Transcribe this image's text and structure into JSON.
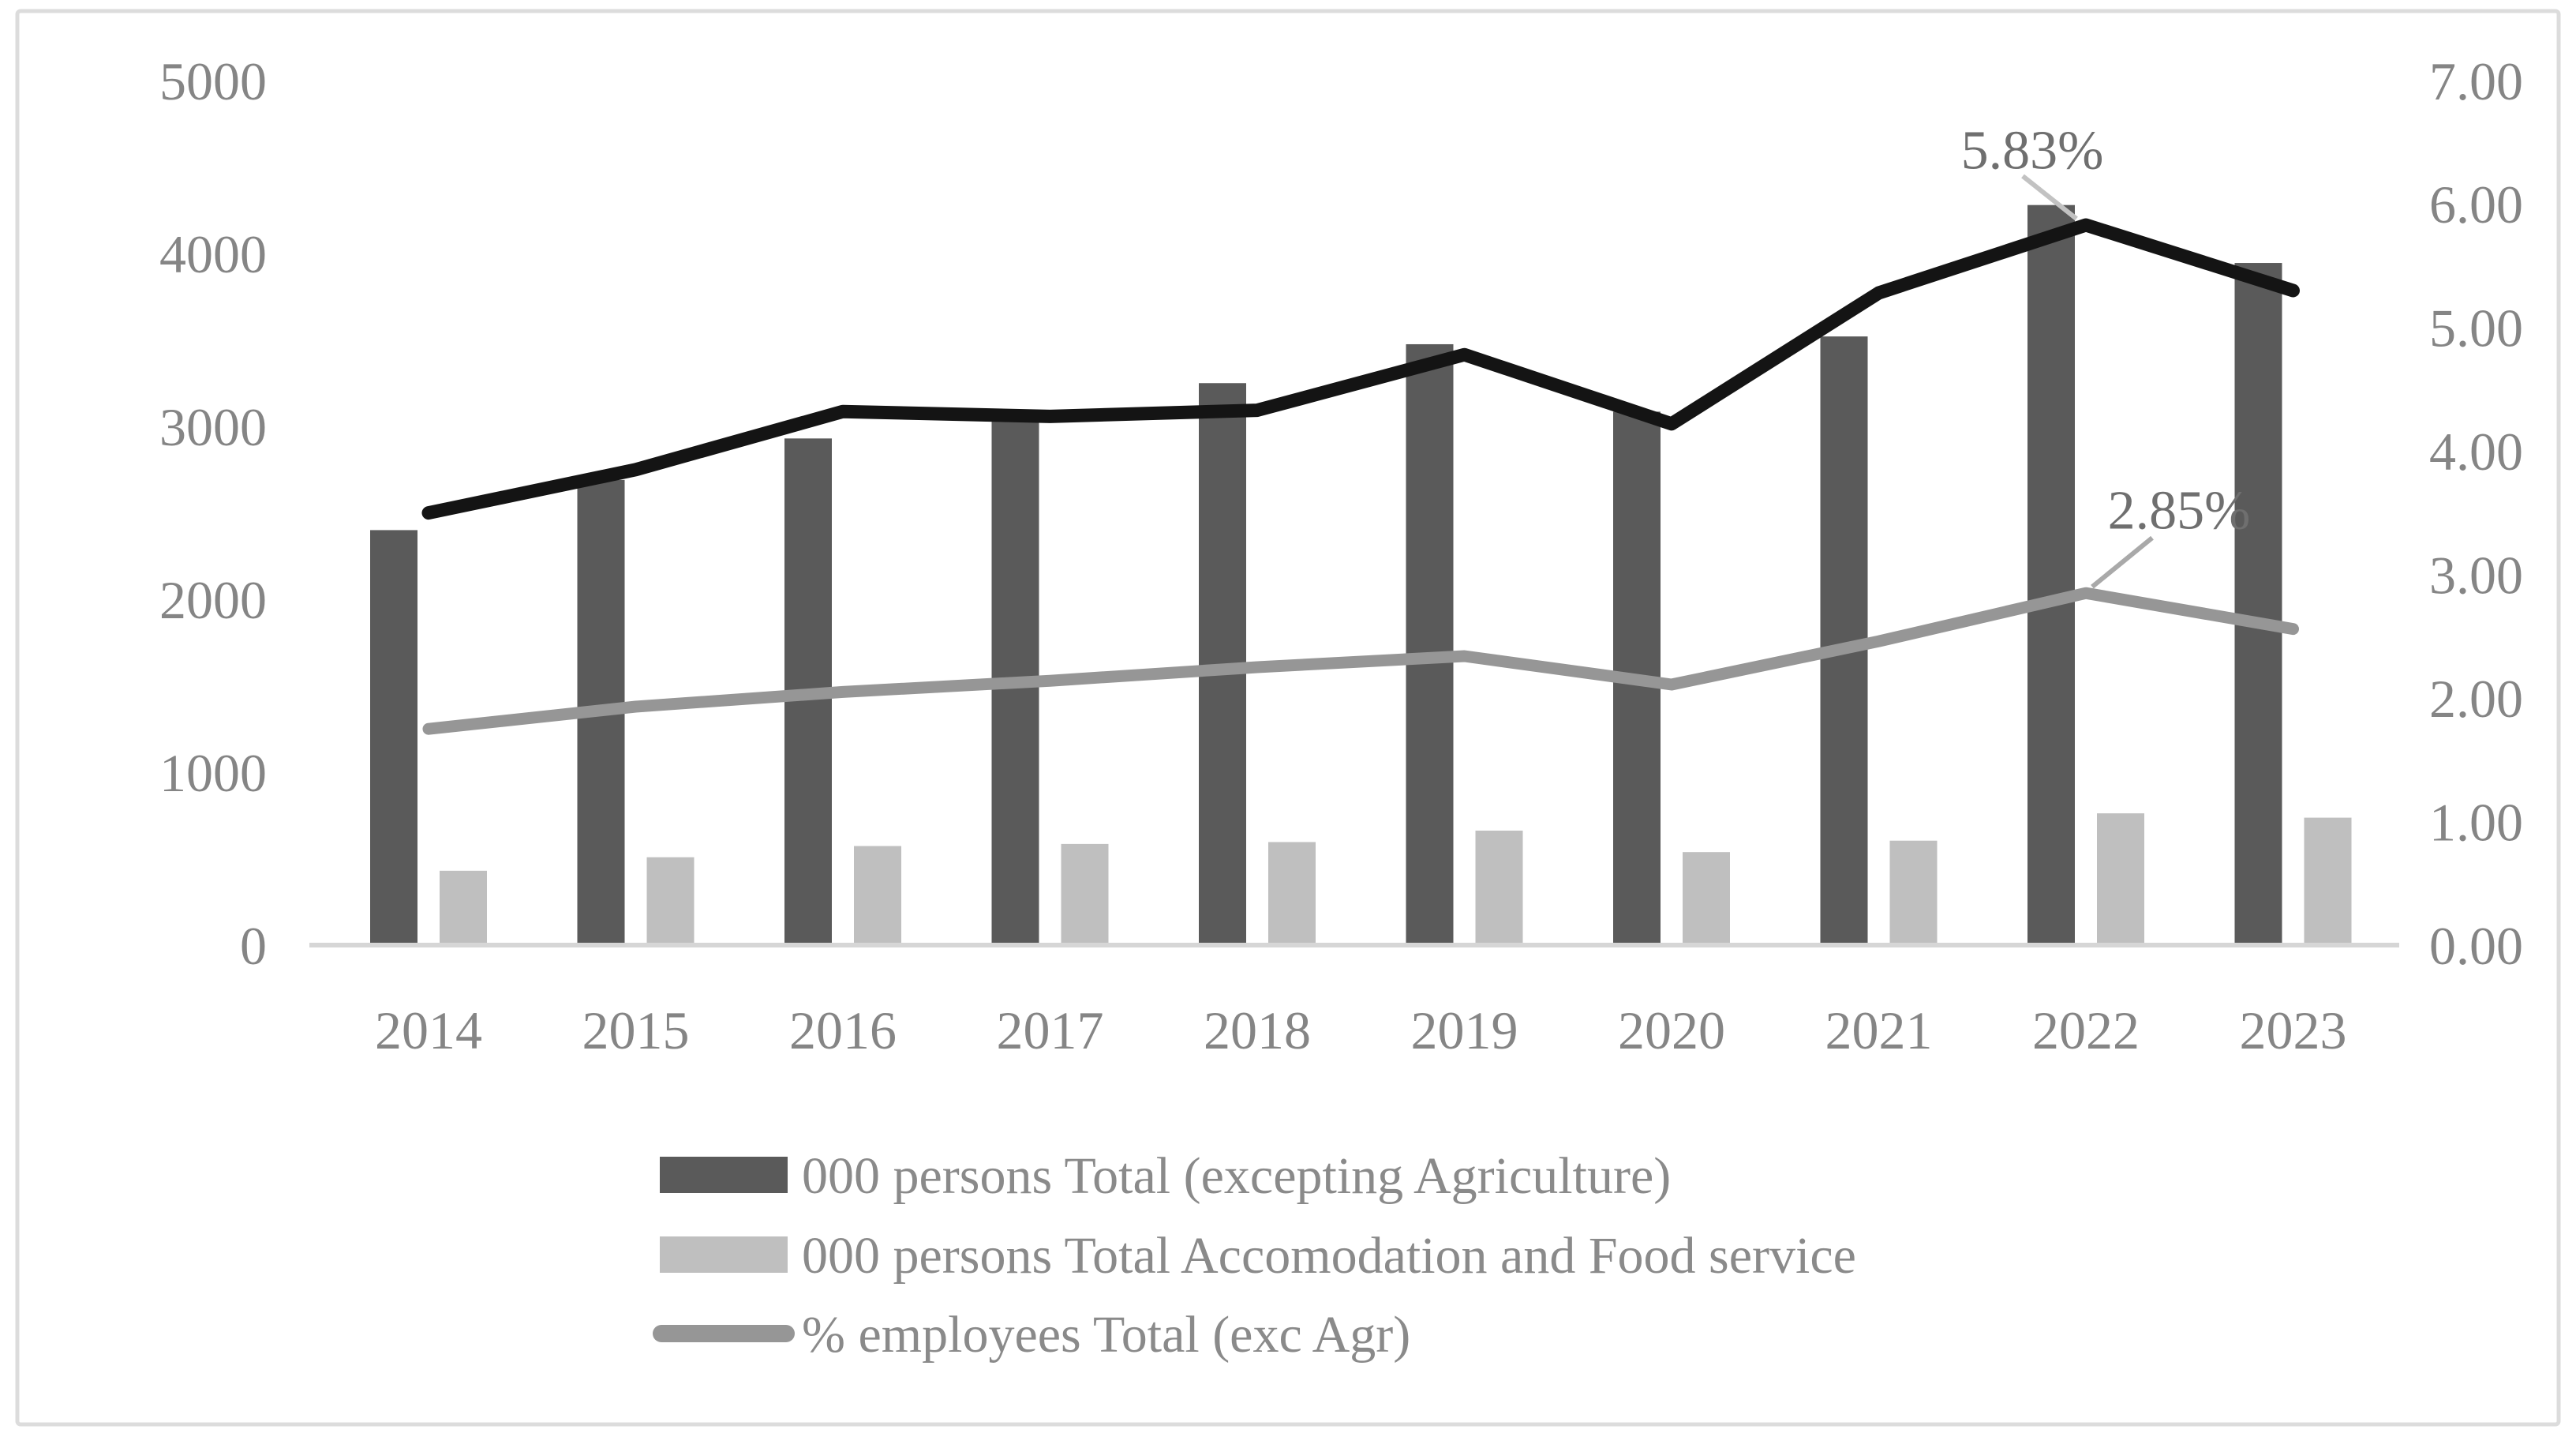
{
  "figure": {
    "background": "#ffffff",
    "border_color": "#dcdcdc",
    "baseline_color": "#d6d6d6",
    "axis_text_color": "#858585",
    "legend_text_color": "#8a8a8a"
  },
  "chart_data": {
    "type": "combo",
    "title": "",
    "grid": false,
    "legend_position": "bottom",
    "categories": [
      "2014",
      "2015",
      "2016",
      "2017",
      "2018",
      "2019",
      "2020",
      "2021",
      "2022",
      "2023"
    ],
    "series": [
      {
        "id": "total_ex_agr_bar",
        "name": "000 persons Total (excepting Agriculture)",
        "type": "bar",
        "axis": "left",
        "color": "#5a5a5a",
        "in_legend": true,
        "values": [
          2400,
          2690,
          2930,
          3045,
          3250,
          3475,
          3085,
          3520,
          4280,
          3945
        ]
      },
      {
        "id": "accom_food_bar",
        "name": "000 persons Total Accomodation and Food service",
        "type": "bar",
        "axis": "left",
        "color": "#bfbfbf",
        "in_legend": true,
        "values": [
          430,
          508,
          573,
          585,
          596,
          662,
          538,
          604,
          762,
          737
        ]
      },
      {
        "id": "pct_employees_line",
        "name": "% employees Total (exc Agr)",
        "type": "line",
        "axis": "right",
        "color": "#969696",
        "in_legend": true,
        "values": [
          1.75,
          1.93,
          2.05,
          2.14,
          2.25,
          2.34,
          2.11,
          2.46,
          2.85,
          2.56
        ]
      },
      {
        "id": "black_line",
        "name": "",
        "type": "line",
        "axis": "right",
        "color": "#141414",
        "in_legend": false,
        "values": [
          3.5,
          3.85,
          4.32,
          4.28,
          4.33,
          4.78,
          4.22,
          5.28,
          5.83,
          5.3
        ]
      }
    ],
    "left_axis": {
      "min": 0,
      "max": 5000,
      "tick_labels": [
        "0",
        "1000",
        "2000",
        "3000",
        "4000",
        "5000"
      ]
    },
    "right_axis": {
      "min": 0,
      "max": 7,
      "tick_labels": [
        "0.00",
        "1.00",
        "2.00",
        "3.00",
        "4.00",
        "5.00",
        "6.00",
        "7.00"
      ]
    },
    "annotations": [
      {
        "text": "5.83%",
        "target_series": "black_line",
        "category": "2022",
        "value": 5.83,
        "placement": "above-left",
        "text_color": "#6f6f6f",
        "leader_color": "#c2c2c2"
      },
      {
        "text": "2.85%",
        "target_series": "pct_employees_line",
        "category": "2022",
        "value": 2.85,
        "placement": "above-right",
        "text_color": "#6f6f6f",
        "leader_color": "#a9a9a9"
      }
    ]
  }
}
